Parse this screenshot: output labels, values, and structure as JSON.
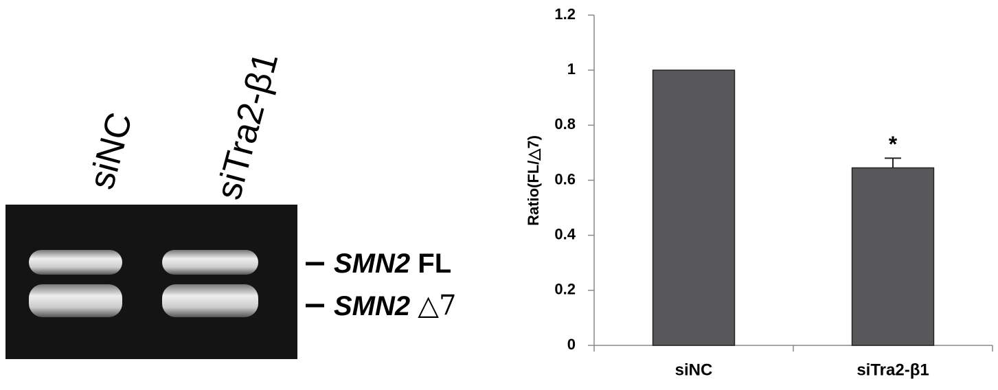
{
  "gel": {
    "lanes": [
      "siNC",
      "siTra2-β1"
    ],
    "bands": [
      {
        "gene": "SMN2",
        "label": "FL"
      },
      {
        "gene": "SMN2",
        "label": "△7"
      }
    ]
  },
  "chart_data": {
    "type": "bar",
    "y_label": "Ratio(FL/△7)",
    "categories": [
      "siNC",
      "siTra2-β1"
    ],
    "values": [
      1,
      0.645
    ],
    "errors": [
      null,
      0.035
    ],
    "annotations": [
      null,
      "*"
    ],
    "color": "#58585a",
    "ylim": [
      0,
      1.2
    ],
    "yticks": [
      0,
      0.2,
      0.4,
      0.6,
      0.8,
      1,
      1.2
    ],
    "grid": false
  }
}
